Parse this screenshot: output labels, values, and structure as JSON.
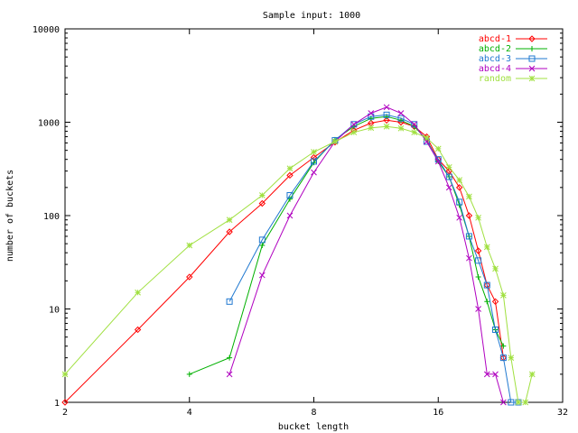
{
  "chart_data": {
    "type": "line",
    "title": "Sample input: 1000",
    "xlabel": "bucket length",
    "ylabel": "number of buckets",
    "xscale": "log2",
    "yscale": "log10",
    "xlim": [
      2,
      32
    ],
    "ylim": [
      1,
      10000
    ],
    "xticks": [
      2,
      4,
      8,
      16,
      32
    ],
    "xtick_labels": [
      "2",
      "4",
      "8",
      "16",
      "32"
    ],
    "yticks": [
      1,
      10,
      100,
      1000,
      10000
    ],
    "ytick_labels": [
      "1",
      "10",
      "100",
      "1000",
      "10000"
    ],
    "grid": false,
    "legend_position": "top-right",
    "series": [
      {
        "name": "abcd-1",
        "color": "#ff0000",
        "marker": "diamond",
        "x": [
          2,
          3,
          4,
          5,
          6,
          7,
          8,
          9,
          10,
          11,
          12,
          13,
          14,
          15,
          16,
          17,
          18,
          19,
          20,
          21,
          22,
          23
        ],
        "y": [
          1,
          6,
          22,
          67,
          135,
          270,
          420,
          610,
          820,
          980,
          1050,
          1000,
          900,
          700,
          400,
          300,
          200,
          100,
          42,
          18,
          12,
          3
        ]
      },
      {
        "name": "abcd-2",
        "color": "#00b000",
        "marker": "plus",
        "x": [
          4,
          5,
          6,
          7,
          8,
          9,
          10,
          11,
          12,
          13,
          14,
          15,
          16,
          17,
          18,
          19,
          20,
          21,
          22,
          23
        ],
        "y": [
          2,
          3,
          48,
          150,
          370,
          650,
          900,
          1100,
          1150,
          1050,
          900,
          650,
          380,
          260,
          130,
          60,
          22,
          12,
          6,
          4
        ]
      },
      {
        "name": "abcd-3",
        "color": "#1f78d0",
        "marker": "square",
        "x": [
          5,
          6,
          7,
          8,
          9,
          10,
          11,
          12,
          13,
          14,
          15,
          16,
          17,
          18,
          19,
          20,
          21,
          22,
          23,
          24,
          25
        ],
        "y": [
          12,
          55,
          165,
          380,
          640,
          950,
          1150,
          1200,
          1100,
          950,
          620,
          400,
          260,
          140,
          60,
          33,
          18,
          6,
          3,
          1,
          1
        ]
      },
      {
        "name": "abcd-4",
        "color": "#b000c0",
        "marker": "cross",
        "x": [
          5,
          6,
          7,
          8,
          9,
          10,
          11,
          12,
          13,
          14,
          15,
          16,
          17,
          18,
          19,
          20,
          21,
          22,
          23
        ],
        "y": [
          2,
          23,
          100,
          290,
          620,
          950,
          1250,
          1450,
          1250,
          950,
          620,
          380,
          200,
          95,
          35,
          10,
          2,
          2,
          1
        ]
      },
      {
        "name": "random",
        "color": "#a0e040",
        "marker": "star",
        "x": [
          2,
          3,
          4,
          5,
          6,
          7,
          8,
          9,
          10,
          11,
          12,
          13,
          14,
          15,
          16,
          17,
          18,
          19,
          20,
          21,
          22,
          23,
          24,
          25,
          26,
          27
        ],
        "y": [
          2,
          15,
          48,
          90,
          165,
          320,
          480,
          620,
          780,
          870,
          900,
          860,
          780,
          680,
          520,
          330,
          240,
          160,
          95,
          46,
          27,
          14,
          3,
          1,
          1,
          2
        ]
      }
    ]
  }
}
